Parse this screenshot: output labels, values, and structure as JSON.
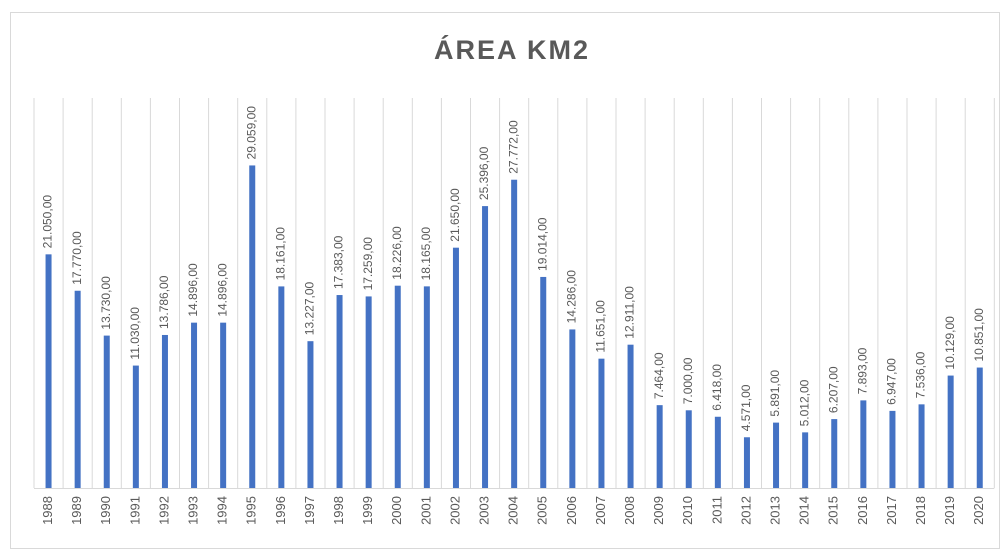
{
  "chart_data": {
    "type": "bar",
    "title": "ÁREA KM2",
    "categories": [
      "1988",
      "1989",
      "1990",
      "1991",
      "1992",
      "1993",
      "1994",
      "1995",
      "1996",
      "1997",
      "1998",
      "1999",
      "2000",
      "2001",
      "2002",
      "2003",
      "2004",
      "2005",
      "2006",
      "2007",
      "2008",
      "2009",
      "2010",
      "2011",
      "2012",
      "2013",
      "2014",
      "2015",
      "2016",
      "2017",
      "2018",
      "2019",
      "2020"
    ],
    "values": [
      21050,
      17770,
      13730,
      11030,
      13786,
      14896,
      14896,
      29059,
      18161,
      13227,
      17383,
      17259,
      18226,
      18165,
      21650,
      25396,
      27772,
      19014,
      14286,
      11651,
      12911,
      7464,
      7000,
      6418,
      4571,
      5891,
      5012,
      6207,
      7893,
      6947,
      7536,
      10129,
      10851
    ],
    "value_labels": [
      "21.050,00",
      "17.770,00",
      "13.730,00",
      "11.030,00",
      "13.786,00",
      "14.896,00",
      "14.896,00",
      "29.059,00",
      "18.161,00",
      "13.227,00",
      "17.383,00",
      "17.259,00",
      "18.226,00",
      "18.165,00",
      "21.650,00",
      "25.396,00",
      "27.772,00",
      "19.014,00",
      "14.286,00",
      "11.651,00",
      "12.911,00",
      "7.464,00",
      "7.000,00",
      "6.418,00",
      "4.571,00",
      "5.891,00",
      "5.012,00",
      "6.207,00",
      "7.893,00",
      "6.947,00",
      "7.536,00",
      "10.129,00",
      "10.851,00"
    ],
    "color": "#4472c4",
    "ylim": [
      0,
      30000
    ]
  }
}
